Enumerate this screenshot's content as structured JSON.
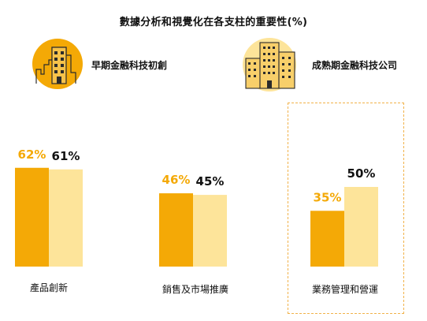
{
  "chart_data": {
    "type": "bar",
    "title": "數據分析和視覺化在各支柱的重要性(%)",
    "categories": [
      "產品創新",
      "銷售及市場推廣",
      "業務管理和營運"
    ],
    "series": [
      {
        "name": "早期金融科技初創",
        "values": [
          62,
          46,
          35
        ],
        "color": "#f4a906",
        "label_color": "#f4a906"
      },
      {
        "name": "成熟期金融科技公司",
        "values": [
          61,
          45,
          50
        ],
        "color": "#fde49a",
        "label_color": "#111111"
      }
    ],
    "value_suffix": "%",
    "highlighted_category": "業務管理和營運",
    "legend_position": "top",
    "grid": false
  },
  "legend_icons": [
    "early-startup-building-icon",
    "mature-company-buildings-icon"
  ],
  "colors": {
    "accent": "#f4a906",
    "light": "#fde49a",
    "dashed_border": "#f1b24a"
  }
}
